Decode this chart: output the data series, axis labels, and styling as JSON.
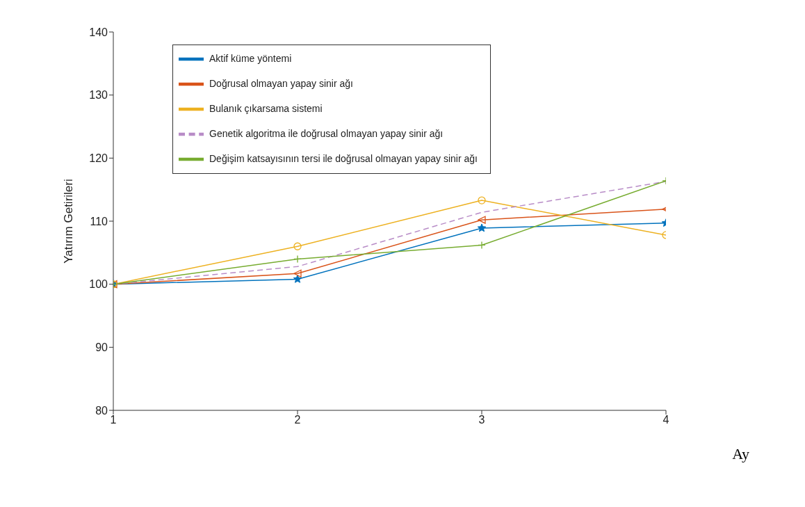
{
  "chart_data": {
    "type": "line",
    "xlabel": "Ay",
    "ylabel": "Yatırım Getirileri",
    "x": [
      1,
      2,
      3,
      4
    ],
    "xlim": [
      1,
      4
    ],
    "xticks": [
      1,
      2,
      3,
      4
    ],
    "ylim": [
      80,
      140
    ],
    "yticks": [
      80,
      90,
      100,
      110,
      120,
      130,
      140
    ],
    "grid": false,
    "legend": "top",
    "series": [
      {
        "name": "Aktif küme yöntemi",
        "color": "#0072bd",
        "marker": "star",
        "line_style": "solid",
        "values": [
          100,
          100.8,
          108.9,
          109.7
        ]
      },
      {
        "name": "Doğrusal olmayan yapay sinir ağı",
        "color": "#d95319",
        "marker": "triangle",
        "line_style": "solid",
        "values": [
          100,
          101.7,
          110.2,
          111.9
        ]
      },
      {
        "name": "Bulanık çıkarsama sistemi",
        "color": "#edb120",
        "marker": "circle",
        "line_style": "solid",
        "values": [
          100,
          106,
          113.3,
          107.8
        ]
      },
      {
        "name": "Genetik algoritma ile doğrusal olmayan yapay sinir ağı",
        "color": "#b88cc7",
        "marker": "none",
        "line_style": "dashed",
        "values": [
          100,
          102.8,
          111.4,
          116.3
        ]
      },
      {
        "name": "Değişim katsayısının tersi ile doğrusal olmayan yapay sinir ağı",
        "color": "#77ac30",
        "marker": "cross",
        "line_style": "solid",
        "values": [
          100,
          104,
          106.2,
          116.4
        ]
      }
    ]
  }
}
